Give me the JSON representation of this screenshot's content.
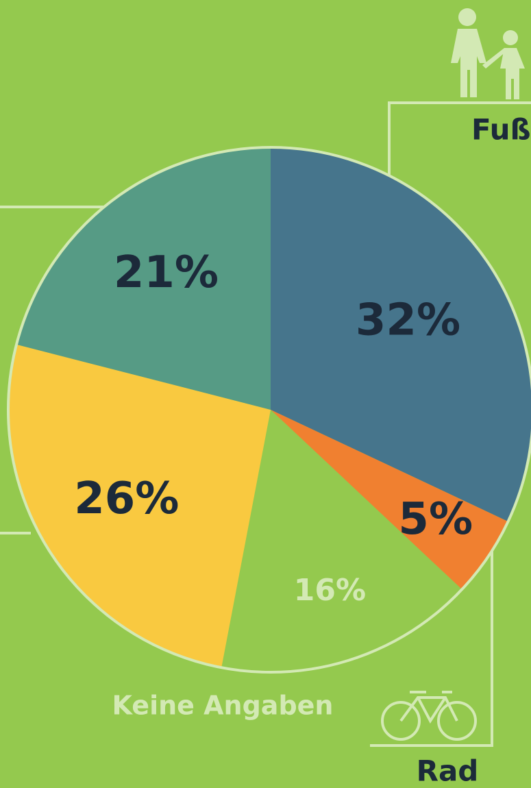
{
  "chart_data": {
    "type": "pie",
    "categories": [
      "Fuß",
      "Rad",
      "Keine Angaben",
      null,
      null
    ],
    "values": [
      32,
      5,
      16,
      26,
      21
    ],
    "value_labels": [
      "32%",
      "5%",
      "16%",
      "26%",
      "21%"
    ],
    "colors": [
      "#46758c",
      "#f08030",
      "#94c94e",
      "#f9c940",
      "#569b85"
    ]
  }
}
